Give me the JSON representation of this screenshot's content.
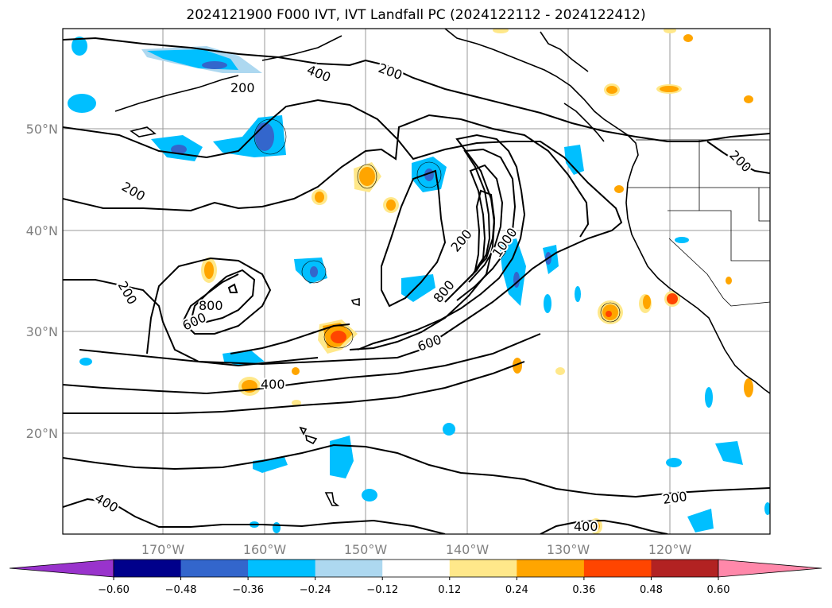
{
  "title": "2024121900 F000 IVT, IVT Landfall PC (2024122112 - 2024122412)",
  "axes": {
    "lat_labels": [
      "50°N",
      "40°N",
      "30°N",
      "20°N"
    ],
    "lon_labels": [
      "170°W",
      "160°W",
      "150°W",
      "140°W",
      "130°W",
      "120°W"
    ]
  },
  "contour_labels": [
    "200",
    "400",
    "200",
    "200",
    "200",
    "200",
    "800",
    "600",
    "1000",
    "200",
    "800",
    "600",
    "400",
    "400",
    "200",
    "400"
  ],
  "colorbar": {
    "colors": [
      "#9933cc",
      "#00008b",
      "#3366cc",
      "#00bfff",
      "#add8f0",
      "#ffffff",
      "#ffe88a",
      "#ffa500",
      "#ff4500",
      "#b22222",
      "#ff88aa"
    ],
    "tick_labels": [
      "−0.60",
      "−0.48",
      "−0.36",
      "−0.24",
      "−0.12",
      "0.12",
      "0.24",
      "0.36",
      "0.48",
      "0.60"
    ]
  }
}
